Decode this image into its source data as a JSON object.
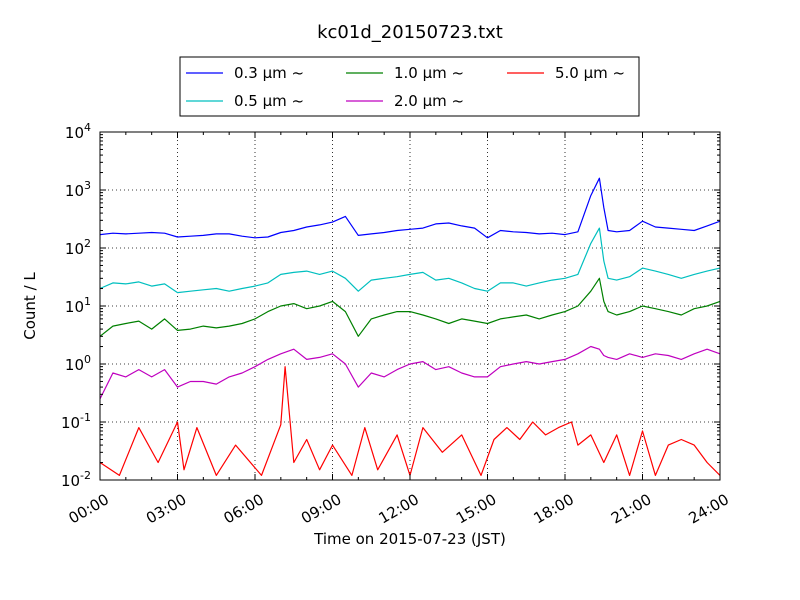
{
  "chart_data": {
    "type": "line",
    "title": "kc01d_20150723.txt",
    "xlabel": "Time on 2015-07-23 (JST)",
    "ylabel": "Count / L",
    "yscale": "log",
    "ylim": [
      0.01,
      10000
    ],
    "xlim": [
      "00:00",
      "24:00"
    ],
    "x_ticks": [
      "00:00",
      "03:00",
      "06:00",
      "09:00",
      "12:00",
      "15:00",
      "18:00",
      "21:00",
      "24:00"
    ],
    "y_ticks": [
      {
        "base": "10",
        "exp": "-2",
        "value": 0.01
      },
      {
        "base": "10",
        "exp": "-1",
        "value": 0.1
      },
      {
        "base": "10",
        "exp": "0",
        "value": 1
      },
      {
        "base": "10",
        "exp": "1",
        "value": 10
      },
      {
        "base": "10",
        "exp": "2",
        "value": 100
      },
      {
        "base": "10",
        "exp": "3",
        "value": 1000
      },
      {
        "base": "10",
        "exp": "4",
        "value": 10000
      }
    ],
    "grid": true,
    "legend_position": "top-center",
    "legend_unit": "μm",
    "legend_suffix": "~",
    "series": [
      {
        "name": "0.3",
        "color": "#0000ff",
        "x": [
          "00:00",
          "00:30",
          "01:00",
          "01:30",
          "02:00",
          "02:30",
          "03:00",
          "03:30",
          "04:00",
          "04:30",
          "05:00",
          "05:30",
          "06:00",
          "06:30",
          "07:00",
          "07:30",
          "08:00",
          "08:30",
          "09:00",
          "09:30",
          "10:00",
          "10:30",
          "11:00",
          "11:30",
          "12:00",
          "12:30",
          "13:00",
          "13:30",
          "14:00",
          "14:30",
          "15:00",
          "15:30",
          "16:00",
          "16:30",
          "17:00",
          "17:30",
          "18:00",
          "18:30",
          "19:00",
          "19:20",
          "19:30",
          "19:40",
          "20:00",
          "20:30",
          "21:00",
          "21:30",
          "22:00",
          "22:30",
          "23:00",
          "23:30",
          "24:00"
        ],
        "values": [
          170,
          180,
          175,
          180,
          185,
          180,
          155,
          160,
          165,
          175,
          175,
          160,
          150,
          155,
          185,
          200,
          230,
          250,
          280,
          350,
          165,
          175,
          185,
          200,
          210,
          220,
          260,
          270,
          240,
          220,
          150,
          200,
          190,
          185,
          175,
          180,
          170,
          190,
          800,
          1600,
          500,
          200,
          190,
          200,
          290,
          230,
          220,
          210,
          200,
          240,
          290
        ]
      },
      {
        "name": "0.5",
        "color": "#00bfbf",
        "x": [
          "00:00",
          "00:30",
          "01:00",
          "01:30",
          "02:00",
          "02:30",
          "03:00",
          "03:30",
          "04:00",
          "04:30",
          "05:00",
          "05:30",
          "06:00",
          "06:30",
          "07:00",
          "07:30",
          "08:00",
          "08:30",
          "09:00",
          "09:30",
          "10:00",
          "10:30",
          "11:00",
          "11:30",
          "12:00",
          "12:30",
          "13:00",
          "13:30",
          "14:00",
          "14:30",
          "15:00",
          "15:30",
          "16:00",
          "16:30",
          "17:00",
          "17:30",
          "18:00",
          "18:30",
          "19:00",
          "19:20",
          "19:30",
          "19:40",
          "20:00",
          "20:30",
          "21:00",
          "21:30",
          "22:00",
          "22:30",
          "23:00",
          "23:30",
          "24:00"
        ],
        "values": [
          20,
          25,
          24,
          26,
          22,
          24,
          17,
          18,
          19,
          20,
          18,
          20,
          22,
          25,
          35,
          38,
          40,
          35,
          40,
          30,
          18,
          28,
          30,
          32,
          35,
          38,
          28,
          30,
          25,
          20,
          18,
          25,
          25,
          22,
          25,
          28,
          30,
          35,
          120,
          220,
          60,
          30,
          28,
          32,
          45,
          40,
          35,
          30,
          35,
          40,
          45
        ]
      },
      {
        "name": "1.0",
        "color": "#008000",
        "x": [
          "00:00",
          "00:30",
          "01:00",
          "01:30",
          "02:00",
          "02:30",
          "03:00",
          "03:30",
          "04:00",
          "04:30",
          "05:00",
          "05:30",
          "06:00",
          "06:30",
          "07:00",
          "07:30",
          "08:00",
          "08:30",
          "09:00",
          "09:30",
          "10:00",
          "10:30",
          "11:00",
          "11:30",
          "12:00",
          "12:30",
          "13:00",
          "13:30",
          "14:00",
          "14:30",
          "15:00",
          "15:30",
          "16:00",
          "16:30",
          "17:00",
          "17:30",
          "18:00",
          "18:30",
          "19:00",
          "19:20",
          "19:30",
          "19:40",
          "20:00",
          "20:30",
          "21:00",
          "21:30",
          "22:00",
          "22:30",
          "23:00",
          "23:30",
          "24:00"
        ],
        "values": [
          3,
          4.5,
          5,
          5.5,
          4,
          6,
          3.8,
          4,
          4.5,
          4.2,
          4.5,
          5,
          6,
          8,
          10,
          11,
          9,
          10,
          12,
          8,
          3,
          6,
          7,
          8,
          8,
          7,
          6,
          5,
          6,
          5.5,
          5,
          6,
          6.5,
          7,
          6,
          7,
          8,
          10,
          18,
          30,
          12,
          8,
          7,
          8,
          10,
          9,
          8,
          7,
          9,
          10,
          12
        ]
      },
      {
        "name": "2.0",
        "color": "#bf00bf",
        "x": [
          "00:00",
          "00:30",
          "01:00",
          "01:30",
          "02:00",
          "02:30",
          "03:00",
          "03:30",
          "04:00",
          "04:30",
          "05:00",
          "05:30",
          "06:00",
          "06:30",
          "07:00",
          "07:30",
          "08:00",
          "08:30",
          "09:00",
          "09:30",
          "10:00",
          "10:30",
          "11:00",
          "11:30",
          "12:00",
          "12:30",
          "13:00",
          "13:30",
          "14:00",
          "14:30",
          "15:00",
          "15:30",
          "16:00",
          "16:30",
          "17:00",
          "17:30",
          "18:00",
          "18:30",
          "19:00",
          "19:20",
          "19:30",
          "19:40",
          "20:00",
          "20:30",
          "21:00",
          "21:30",
          "22:00",
          "22:30",
          "23:00",
          "23:30",
          "24:00"
        ],
        "values": [
          0.25,
          0.7,
          0.6,
          0.8,
          0.6,
          0.8,
          0.4,
          0.5,
          0.5,
          0.45,
          0.6,
          0.7,
          0.9,
          1.2,
          1.5,
          1.8,
          1.2,
          1.3,
          1.5,
          1.0,
          0.4,
          0.7,
          0.6,
          0.8,
          1.0,
          1.1,
          0.8,
          0.9,
          0.7,
          0.6,
          0.6,
          0.9,
          1.0,
          1.1,
          1.0,
          1.1,
          1.2,
          1.5,
          2.0,
          1.8,
          1.4,
          1.3,
          1.2,
          1.5,
          1.3,
          1.5,
          1.4,
          1.2,
          1.5,
          1.8,
          1.5
        ]
      },
      {
        "name": "5.0",
        "color": "#ff0000",
        "x": [
          "00:00",
          "00:45",
          "01:30",
          "02:15",
          "03:00",
          "03:15",
          "03:45",
          "04:30",
          "05:15",
          "06:15",
          "07:00",
          "07:10",
          "07:30",
          "08:00",
          "08:30",
          "09:00",
          "09:45",
          "10:15",
          "10:45",
          "11:30",
          "12:00",
          "12:30",
          "13:15",
          "14:00",
          "14:45",
          "15:15",
          "15:45",
          "16:15",
          "16:45",
          "17:15",
          "17:45",
          "18:15",
          "18:30",
          "19:00",
          "19:30",
          "20:00",
          "20:30",
          "21:00",
          "21:30",
          "22:00",
          "22:30",
          "23:00",
          "23:30",
          "24:00"
        ],
        "values": [
          0.02,
          0.012,
          0.08,
          0.02,
          0.1,
          0.015,
          0.08,
          0.012,
          0.04,
          0.012,
          0.09,
          0.9,
          0.02,
          0.05,
          0.015,
          0.04,
          0.012,
          0.08,
          0.015,
          0.06,
          0.012,
          0.08,
          0.03,
          0.06,
          0.012,
          0.05,
          0.08,
          0.05,
          0.1,
          0.06,
          0.08,
          0.1,
          0.04,
          0.06,
          0.02,
          0.06,
          0.012,
          0.07,
          0.012,
          0.04,
          0.05,
          0.04,
          0.02,
          0.012
        ]
      }
    ]
  }
}
